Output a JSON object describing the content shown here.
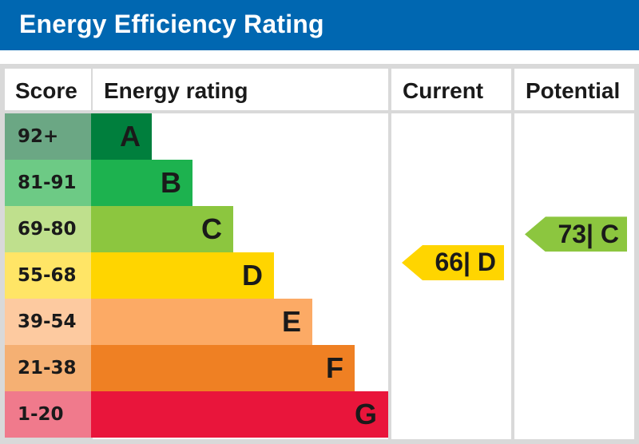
{
  "header": {
    "title": "Energy Efficiency Rating",
    "color": "#0067b1"
  },
  "columns": {
    "score": "Score",
    "rating": "Energy rating",
    "current": "Current",
    "potential": "Potential"
  },
  "chart_data": {
    "type": "table",
    "bands": [
      {
        "score": "92+",
        "letter": "A",
        "color": "#007f3d",
        "score_color": "#6ba784"
      },
      {
        "score": "81-91",
        "letter": "B",
        "color": "#1db24f",
        "score_color": "#6dca85"
      },
      {
        "score": "69-80",
        "letter": "C",
        "color": "#8cc63f",
        "score_color": "#bfe08d"
      },
      {
        "score": "55-68",
        "letter": "D",
        "color": "#ffd500",
        "score_color": "#ffe566"
      },
      {
        "score": "39-54",
        "letter": "E",
        "color": "#fcaa65",
        "score_color": "#fdcaa0"
      },
      {
        "score": "21-38",
        "letter": "F",
        "color": "#ef8023",
        "score_color": "#f5b073"
      },
      {
        "score": "1-20",
        "letter": "G",
        "color": "#e9153b",
        "score_color": "#f07a8c"
      }
    ],
    "current": {
      "value": 66,
      "letter": "D",
      "label": "66| D",
      "color": "#ffd500"
    },
    "potential": {
      "value": 73,
      "letter": "C",
      "label": "73| C",
      "color": "#8cc63f"
    }
  }
}
